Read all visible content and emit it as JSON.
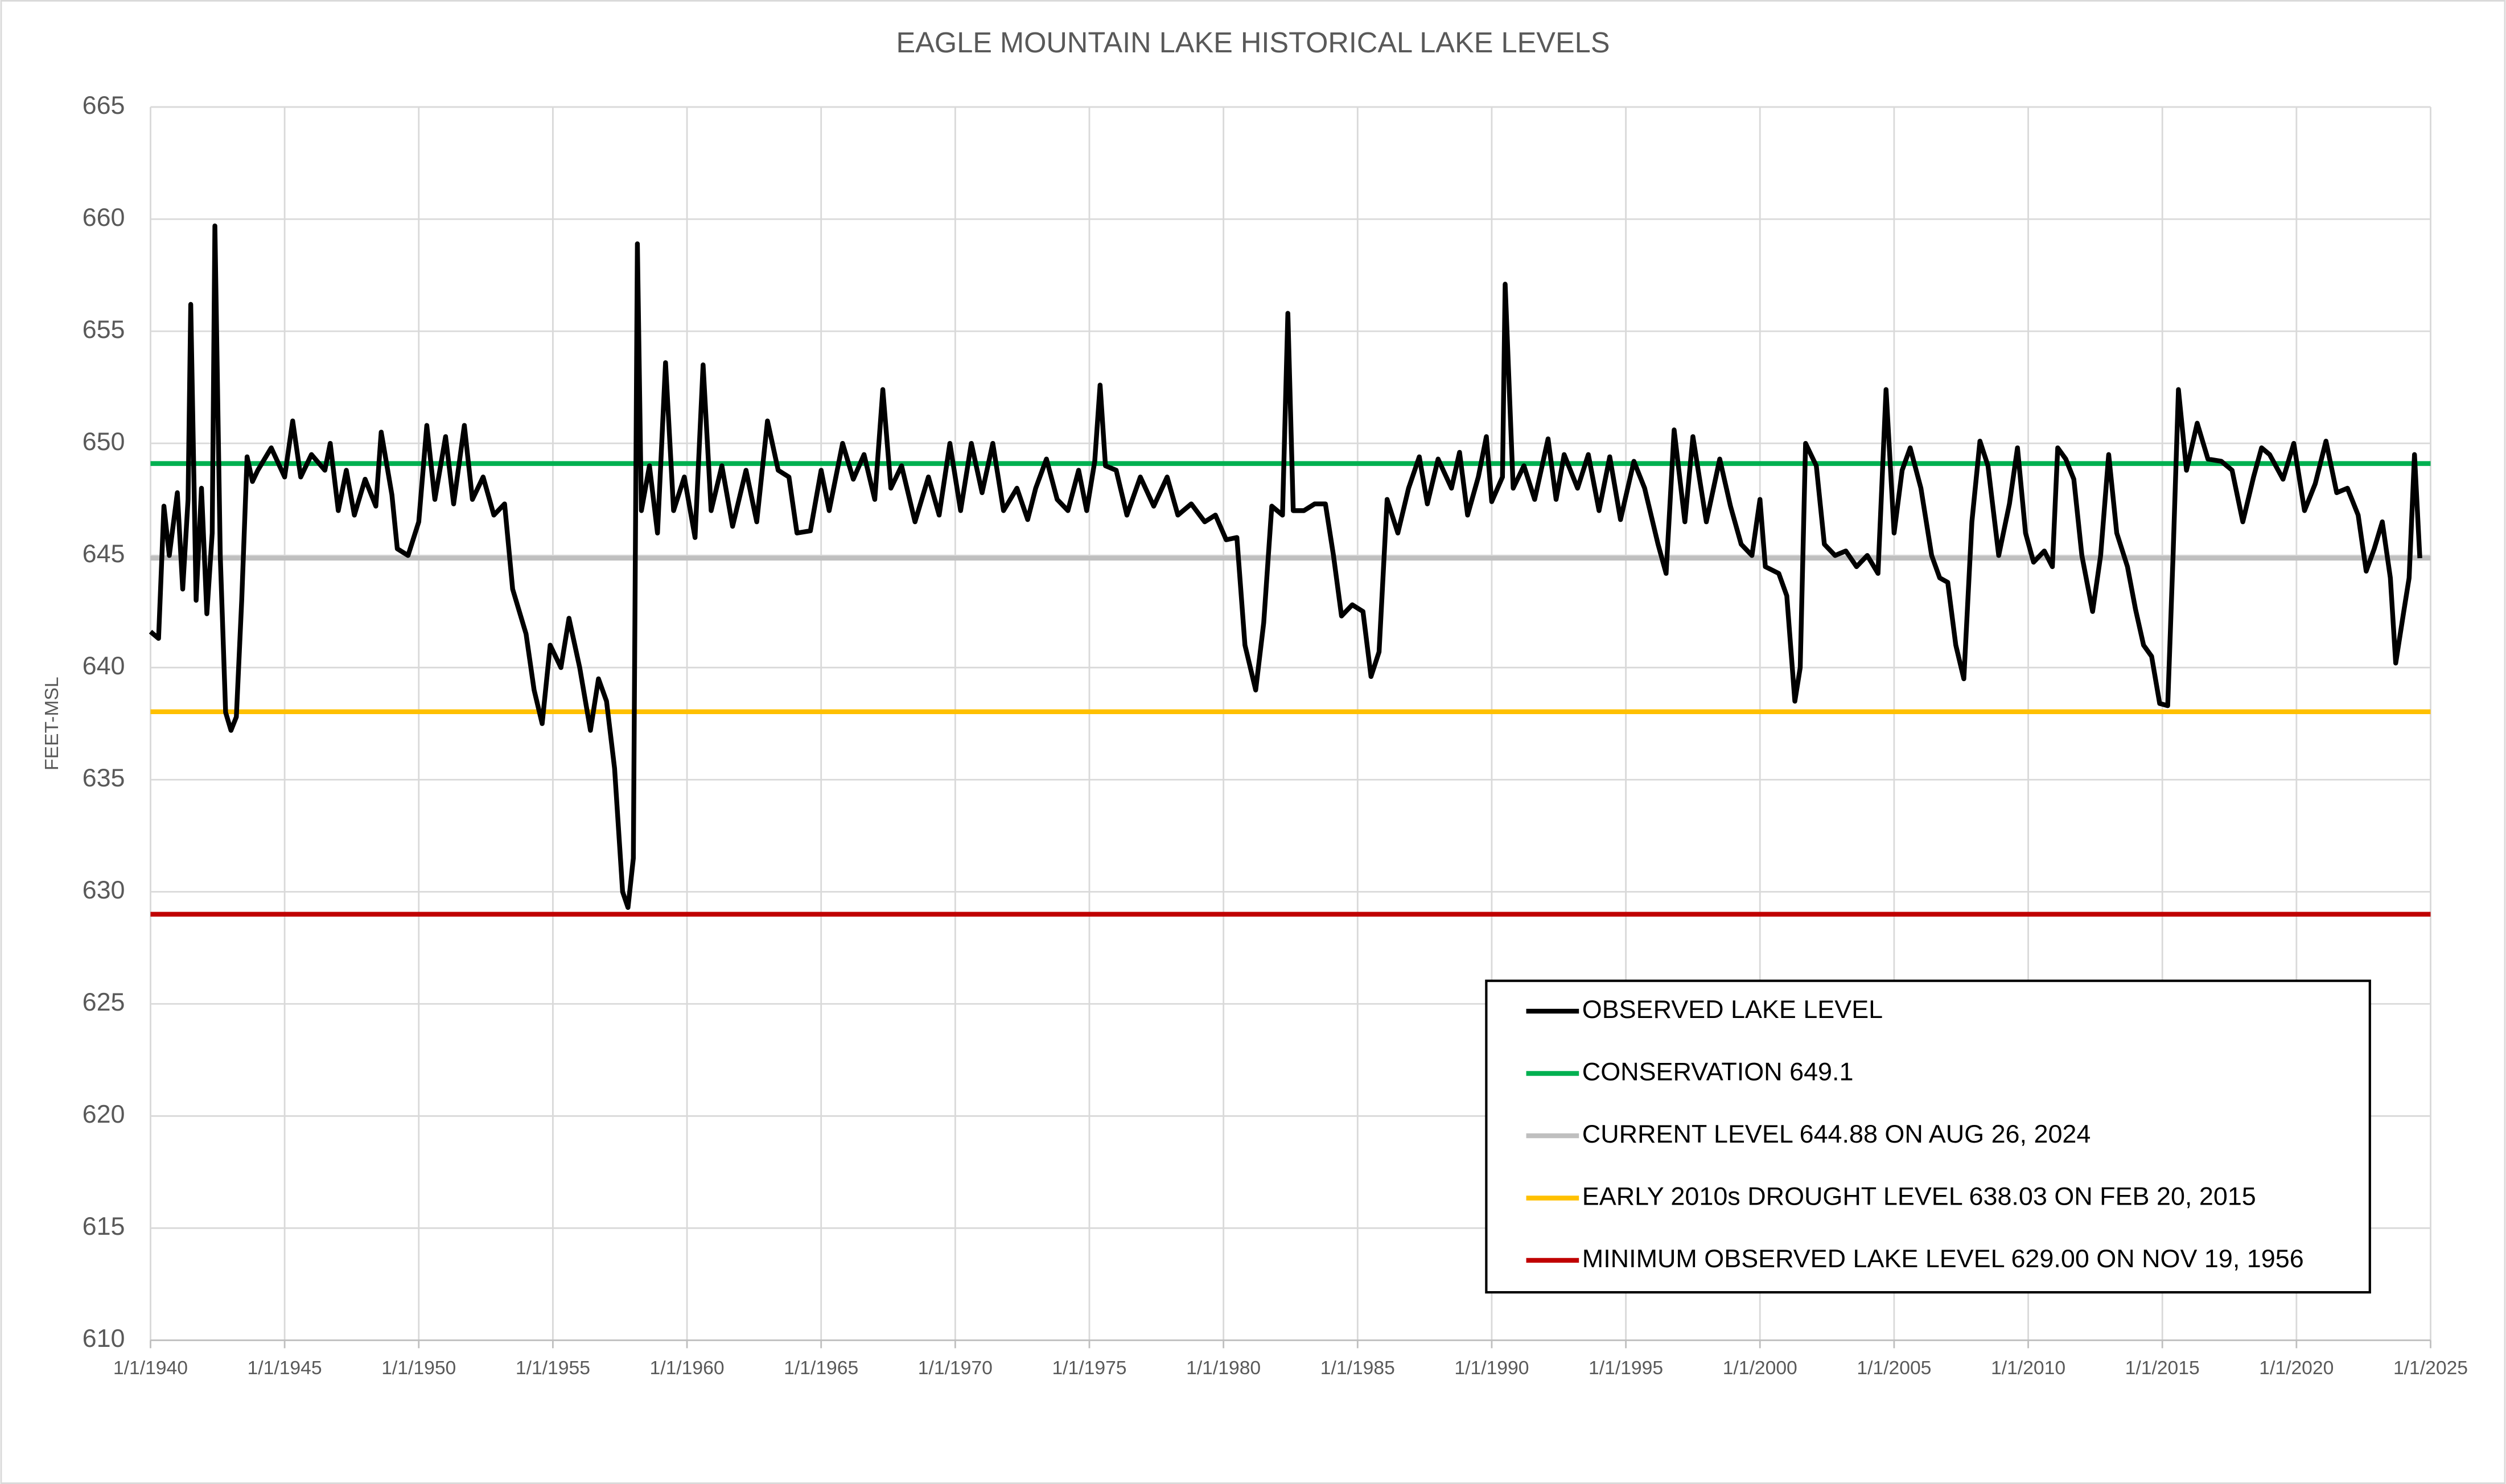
{
  "chart_data": {
    "type": "line",
    "title": "EAGLE MOUNTAIN LAKE HISTORICAL LAKE LEVELS",
    "y_label": "FEET-MSL",
    "xlim": [
      1940,
      2025
    ],
    "xticks": [
      {
        "value": 1940,
        "label": "1/1/1940"
      },
      {
        "value": 1945,
        "label": "1/1/1945"
      },
      {
        "value": 1950,
        "label": "1/1/1950"
      },
      {
        "value": 1955,
        "label": "1/1/1955"
      },
      {
        "value": 1960,
        "label": "1/1/1960"
      },
      {
        "value": 1965,
        "label": "1/1/1965"
      },
      {
        "value": 1970,
        "label": "1/1/1970"
      },
      {
        "value": 1975,
        "label": "1/1/1975"
      },
      {
        "value": 1980,
        "label": "1/1/1980"
      },
      {
        "value": 1985,
        "label": "1/1/1985"
      },
      {
        "value": 1990,
        "label": "1/1/1990"
      },
      {
        "value": 1995,
        "label": "1/1/1995"
      },
      {
        "value": 2000,
        "label": "1/1/2000"
      },
      {
        "value": 2005,
        "label": "1/1/2005"
      },
      {
        "value": 2010,
        "label": "1/1/2010"
      },
      {
        "value": 2015,
        "label": "1/1/2015"
      },
      {
        "value": 2020,
        "label": "1/1/2020"
      },
      {
        "value": 2025,
        "label": "1/1/2025"
      }
    ],
    "ylim": [
      610,
      665
    ],
    "yticks": [
      610,
      615,
      620,
      625,
      630,
      635,
      640,
      645,
      650,
      655,
      660,
      665
    ],
    "grid": true,
    "legend": "bottom-right",
    "series": [
      {
        "name": "OBSERVED LAKE LEVEL",
        "color": "#000000",
        "x": [
          1940.0,
          1940.3,
          1940.5,
          1940.7,
          1941.0,
          1941.2,
          1941.4,
          1941.5,
          1941.7,
          1941.9,
          1942.1,
          1942.3,
          1942.4,
          1942.6,
          1942.7,
          1942.8,
          1943.0,
          1943.2,
          1943.4,
          1943.6,
          1943.8,
          1944.0,
          1944.5,
          1945.0,
          1945.3,
          1945.6,
          1946.0,
          1946.5,
          1946.7,
          1947.0,
          1947.3,
          1947.6,
          1948.0,
          1948.4,
          1948.6,
          1949.0,
          1949.2,
          1949.6,
          1950.0,
          1950.3,
          1950.6,
          1951.0,
          1951.3,
          1951.7,
          1952.0,
          1952.4,
          1952.8,
          1953.2,
          1953.5,
          1954.0,
          1954.3,
          1954.6,
          1954.9,
          1955.3,
          1955.6,
          1956.0,
          1956.2,
          1956.4,
          1956.7,
          1957.0,
          1957.3,
          1957.6,
          1957.8,
          1958.0,
          1958.15,
          1958.3,
          1958.6,
          1958.9,
          1959.2,
          1959.5,
          1959.9,
          1960.3,
          1960.6,
          1960.9,
          1961.3,
          1961.7,
          1962.2,
          1962.6,
          1963.0,
          1963.4,
          1963.8,
          1964.1,
          1964.6,
          1965.0,
          1965.3,
          1965.8,
          1966.2,
          1966.6,
          1967.0,
          1967.3,
          1967.6,
          1968.0,
          1968.5,
          1969.0,
          1969.4,
          1969.8,
          1970.2,
          1970.6,
          1971.0,
          1971.4,
          1971.8,
          1972.3,
          1972.7,
          1973.0,
          1973.4,
          1973.8,
          1974.2,
          1974.6,
          1974.9,
          1975.2,
          1975.4,
          1975.6,
          1976.0,
          1976.4,
          1976.9,
          1977.4,
          1977.9,
          1978.3,
          1978.8,
          1979.3,
          1979.7,
          1980.1,
          1980.5,
          1980.8,
          1981.2,
          1981.5,
          1981.8,
          1982.2,
          1982.4,
          1982.6,
          1983.0,
          1983.4,
          1983.8,
          1984.1,
          1984.4,
          1984.8,
          1985.2,
          1985.5,
          1985.8,
          1986.1,
          1986.5,
          1986.9,
          1987.3,
          1987.6,
          1988.0,
          1988.5,
          1988.8,
          1989.1,
          1989.5,
          1989.8,
          1990.0,
          1990.4,
          1990.5,
          1990.8,
          1991.2,
          1991.6,
          1992.1,
          1992.4,
          1992.7,
          1993.2,
          1993.6,
          1994.0,
          1994.4,
          1994.8,
          1995.3,
          1995.7,
          1996.2,
          1996.5,
          1996.8,
          1997.2,
          1997.5,
          1998.0,
          1998.5,
          1998.9,
          1999.3,
          1999.7,
          2000.0,
          2000.2,
          2000.7,
          2001.0,
          2001.3,
          2001.5,
          2001.7,
          2002.1,
          2002.4,
          2002.8,
          2003.2,
          2003.6,
          2004.0,
          2004.4,
          2004.7,
          2005.0,
          2005.3,
          2005.6,
          2006.0,
          2006.4,
          2006.7,
          2007.0,
          2007.3,
          2007.6,
          2007.9,
          2008.2,
          2008.5,
          2008.9,
          2009.3,
          2009.6,
          2009.9,
          2010.2,
          2010.6,
          2010.9,
          2011.1,
          2011.4,
          2011.7,
          2012.0,
          2012.4,
          2012.7,
          2013.0,
          2013.3,
          2013.7,
          2014.0,
          2014.3,
          2014.6,
          2014.9,
          2015.2,
          2015.4,
          2015.6,
          2015.9,
          2016.3,
          2016.7,
          2017.2,
          2017.6,
          2018.0,
          2018.4,
          2018.7,
          2019.0,
          2019.5,
          2019.9,
          2020.3,
          2020.7,
          2021.1,
          2021.5,
          2021.9,
          2022.3,
          2022.6,
          2022.9,
          2023.2,
          2023.5,
          2023.7,
          2024.0,
          2024.2,
          2024.4,
          2024.6
        ],
        "values": [
          641.6,
          641.3,
          647.2,
          645,
          647.8,
          643.5,
          647.5,
          656.2,
          643,
          648,
          642.4,
          646,
          659.7,
          645,
          641.5,
          638,
          637.2,
          637.8,
          643,
          649.4,
          648.3,
          648.8,
          649.8,
          648.5,
          651,
          648.5,
          649.5,
          648.8,
          650,
          647,
          648.8,
          646.8,
          648.4,
          647.2,
          650.5,
          647.7,
          645.3,
          645,
          646.5,
          650.8,
          647.5,
          650.3,
          647.3,
          650.8,
          647.5,
          648.5,
          646.8,
          647.3,
          643.5,
          641.5,
          639,
          637.5,
          641,
          640,
          642.2,
          640,
          638.6,
          637.2,
          639.5,
          638.5,
          635.5,
          630,
          629.3,
          631.5,
          658.9,
          647,
          649,
          646,
          653.6,
          647,
          648.5,
          645.8,
          653.5,
          647,
          649,
          646.3,
          648.8,
          646.5,
          651,
          648.8,
          648.5,
          646,
          646.1,
          648.8,
          647,
          650,
          648.4,
          649.5,
          647.5,
          652.4,
          648,
          649,
          646.5,
          648.5,
          646.8,
          650,
          647,
          650,
          647.8,
          650,
          647,
          648,
          646.6,
          648,
          649.3,
          647.5,
          647,
          648.8,
          647,
          649.2,
          652.6,
          649,
          648.8,
          646.8,
          648.5,
          647.2,
          648.5,
          646.8,
          647.3,
          646.5,
          646.8,
          645.7,
          645.8,
          641,
          639,
          642,
          647.2,
          646.8,
          655.8,
          647,
          647,
          647.3,
          647.3,
          645,
          642.3,
          642.8,
          642.5,
          639.6,
          640.7,
          647.5,
          646,
          648,
          649.4,
          647.3,
          649.3,
          648,
          649.6,
          646.8,
          648.5,
          650.3,
          647.4,
          648.5,
          657.1,
          648,
          649,
          647.5,
          650.2,
          647.5,
          649.5,
          648,
          649.5,
          647,
          649.4,
          646.6,
          649.2,
          648,
          645.5,
          644.2,
          650.6,
          646.5,
          650.3,
          646.5,
          649.3,
          647.2,
          645.5,
          645,
          647.5,
          644.5,
          644.2,
          643.2,
          638.5,
          640,
          650,
          649,
          645.5,
          645,
          645.2,
          644.5,
          645,
          644.2,
          652.4,
          646,
          648.8,
          649.8,
          648,
          645,
          644,
          643.8,
          641,
          639.5,
          646.5,
          650.1,
          649,
          645,
          647.3,
          649.8,
          646,
          644.7,
          645.2,
          644.5,
          649.8,
          649.3,
          648.4,
          645,
          642.5,
          645,
          649.5,
          646,
          644.5,
          642.6,
          641,
          640.5,
          638.4,
          638.3,
          645,
          652.4,
          648.8,
          650.9,
          649.3,
          649.2,
          648.8,
          646.5,
          648.5,
          649.8,
          649.5,
          648.4,
          650,
          647,
          648.2,
          650.1,
          647.8,
          648,
          646.8,
          644.3,
          645.3,
          646.5,
          644,
          640.2,
          642.5,
          644,
          649.5,
          644.88
        ]
      },
      {
        "name": "CONSERVATION 649.1",
        "color": "#00b050",
        "x": [
          1940,
          2025
        ],
        "values": [
          649.1,
          649.1
        ]
      },
      {
        "name": "CURRENT LEVEL 644.88 ON AUG 26, 2024",
        "color": "#bfbfbf",
        "x": [
          1940,
          2025
        ],
        "values": [
          644.88,
          644.88
        ]
      },
      {
        "name": "EARLY 2010s DROUGHT LEVEL 638.03 ON FEB 20, 2015",
        "color": "#ffc000",
        "x": [
          1940,
          2025
        ],
        "values": [
          638.03,
          638.03
        ]
      },
      {
        "name": "MINIMUM OBSERVED LAKE LEVEL 629.00 ON NOV 19, 1956",
        "color": "#c00000",
        "x": [
          1940,
          2025
        ],
        "values": [
          629.0,
          629.0
        ]
      }
    ]
  }
}
